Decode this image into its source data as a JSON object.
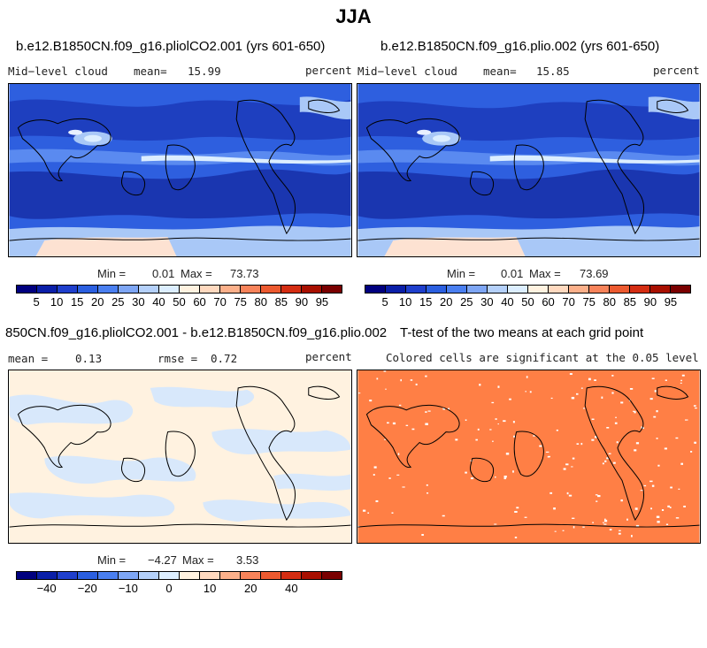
{
  "title": "JJA",
  "panels": {
    "top_left": {
      "case": "b.e12.B1850CN.f09_g16.pliolCO2.001 (yrs 601-650)",
      "variable": "Mid−level cloud",
      "mean_label": "mean=",
      "mean_value": "15.99",
      "units": "percent",
      "min_label": "Min =",
      "min_value": "0.01",
      "max_label": "Max =",
      "max_value": "73.73"
    },
    "top_right": {
      "case": "b.e12.B1850CN.f09_g16.plio.002 (yrs 601-650)",
      "variable": "Mid−level cloud",
      "mean_label": "mean=",
      "mean_value": "15.85",
      "units": "percent",
      "min_label": "Min =",
      "min_value": "0.01",
      "max_label": "Max =",
      "max_value": "73.69"
    },
    "bottom_left": {
      "case": "850CN.f09_g16.pliolCO2.001 - b.e12.B1850CN.f09_g16.plio.002",
      "mean_label": "mean =",
      "mean_value": "0.13",
      "rmse_label": "rmse =",
      "rmse_value": "0.72",
      "units": "percent",
      "min_label": "Min =",
      "min_value": "−4.27",
      "max_label": "Max =",
      "max_value": "3.53"
    },
    "bottom_right": {
      "case": "T-test of the two means at each grid point",
      "subtitle": "Colored cells are significant at the 0.05 level"
    }
  },
  "colorbar_abs": {
    "colors": [
      "#00007f",
      "#0a1fa8",
      "#1f3fcc",
      "#2b5fe0",
      "#4a7ff0",
      "#7ea6f5",
      "#b4d0fa",
      "#dceeff",
      "#fff2e0",
      "#ffd9bf",
      "#fcb08a",
      "#f7835a",
      "#ec5a30",
      "#d42d12",
      "#a80f00",
      "#7a0000"
    ],
    "labels": [
      "5",
      "10",
      "15",
      "20",
      "25",
      "30",
      "40",
      "50",
      "60",
      "70",
      "75",
      "80",
      "85",
      "90",
      "95"
    ]
  },
  "colorbar_diff": {
    "colors": [
      "#00007f",
      "#0a1fa8",
      "#1f3fcc",
      "#2b5fe0",
      "#4a7ff0",
      "#7ea6f5",
      "#b4d0fa",
      "#dceeff",
      "#fff2e0",
      "#ffd9bf",
      "#fcb08a",
      "#f7835a",
      "#ec5a30",
      "#d42d12",
      "#a80f00",
      "#7a0000"
    ],
    "labels": [
      "−40",
      "−20",
      "−10",
      "0",
      "10",
      "20",
      "40"
    ],
    "label_positions": [
      1.5,
      3.5,
      5.5,
      7.5,
      9.5,
      11.5,
      13.5
    ]
  },
  "map_colors": {
    "ocean_low": "#1e3fbf",
    "ocean_mid": "#2e5fdf",
    "band": "#5a8af0",
    "light": "#a9c8f7",
    "very_light": "#dceeff",
    "pink": "#fde2d2",
    "diff_pos": "#fff2e0",
    "diff_neg": "#d8e8fb",
    "ttest": "#ff7f45"
  }
}
